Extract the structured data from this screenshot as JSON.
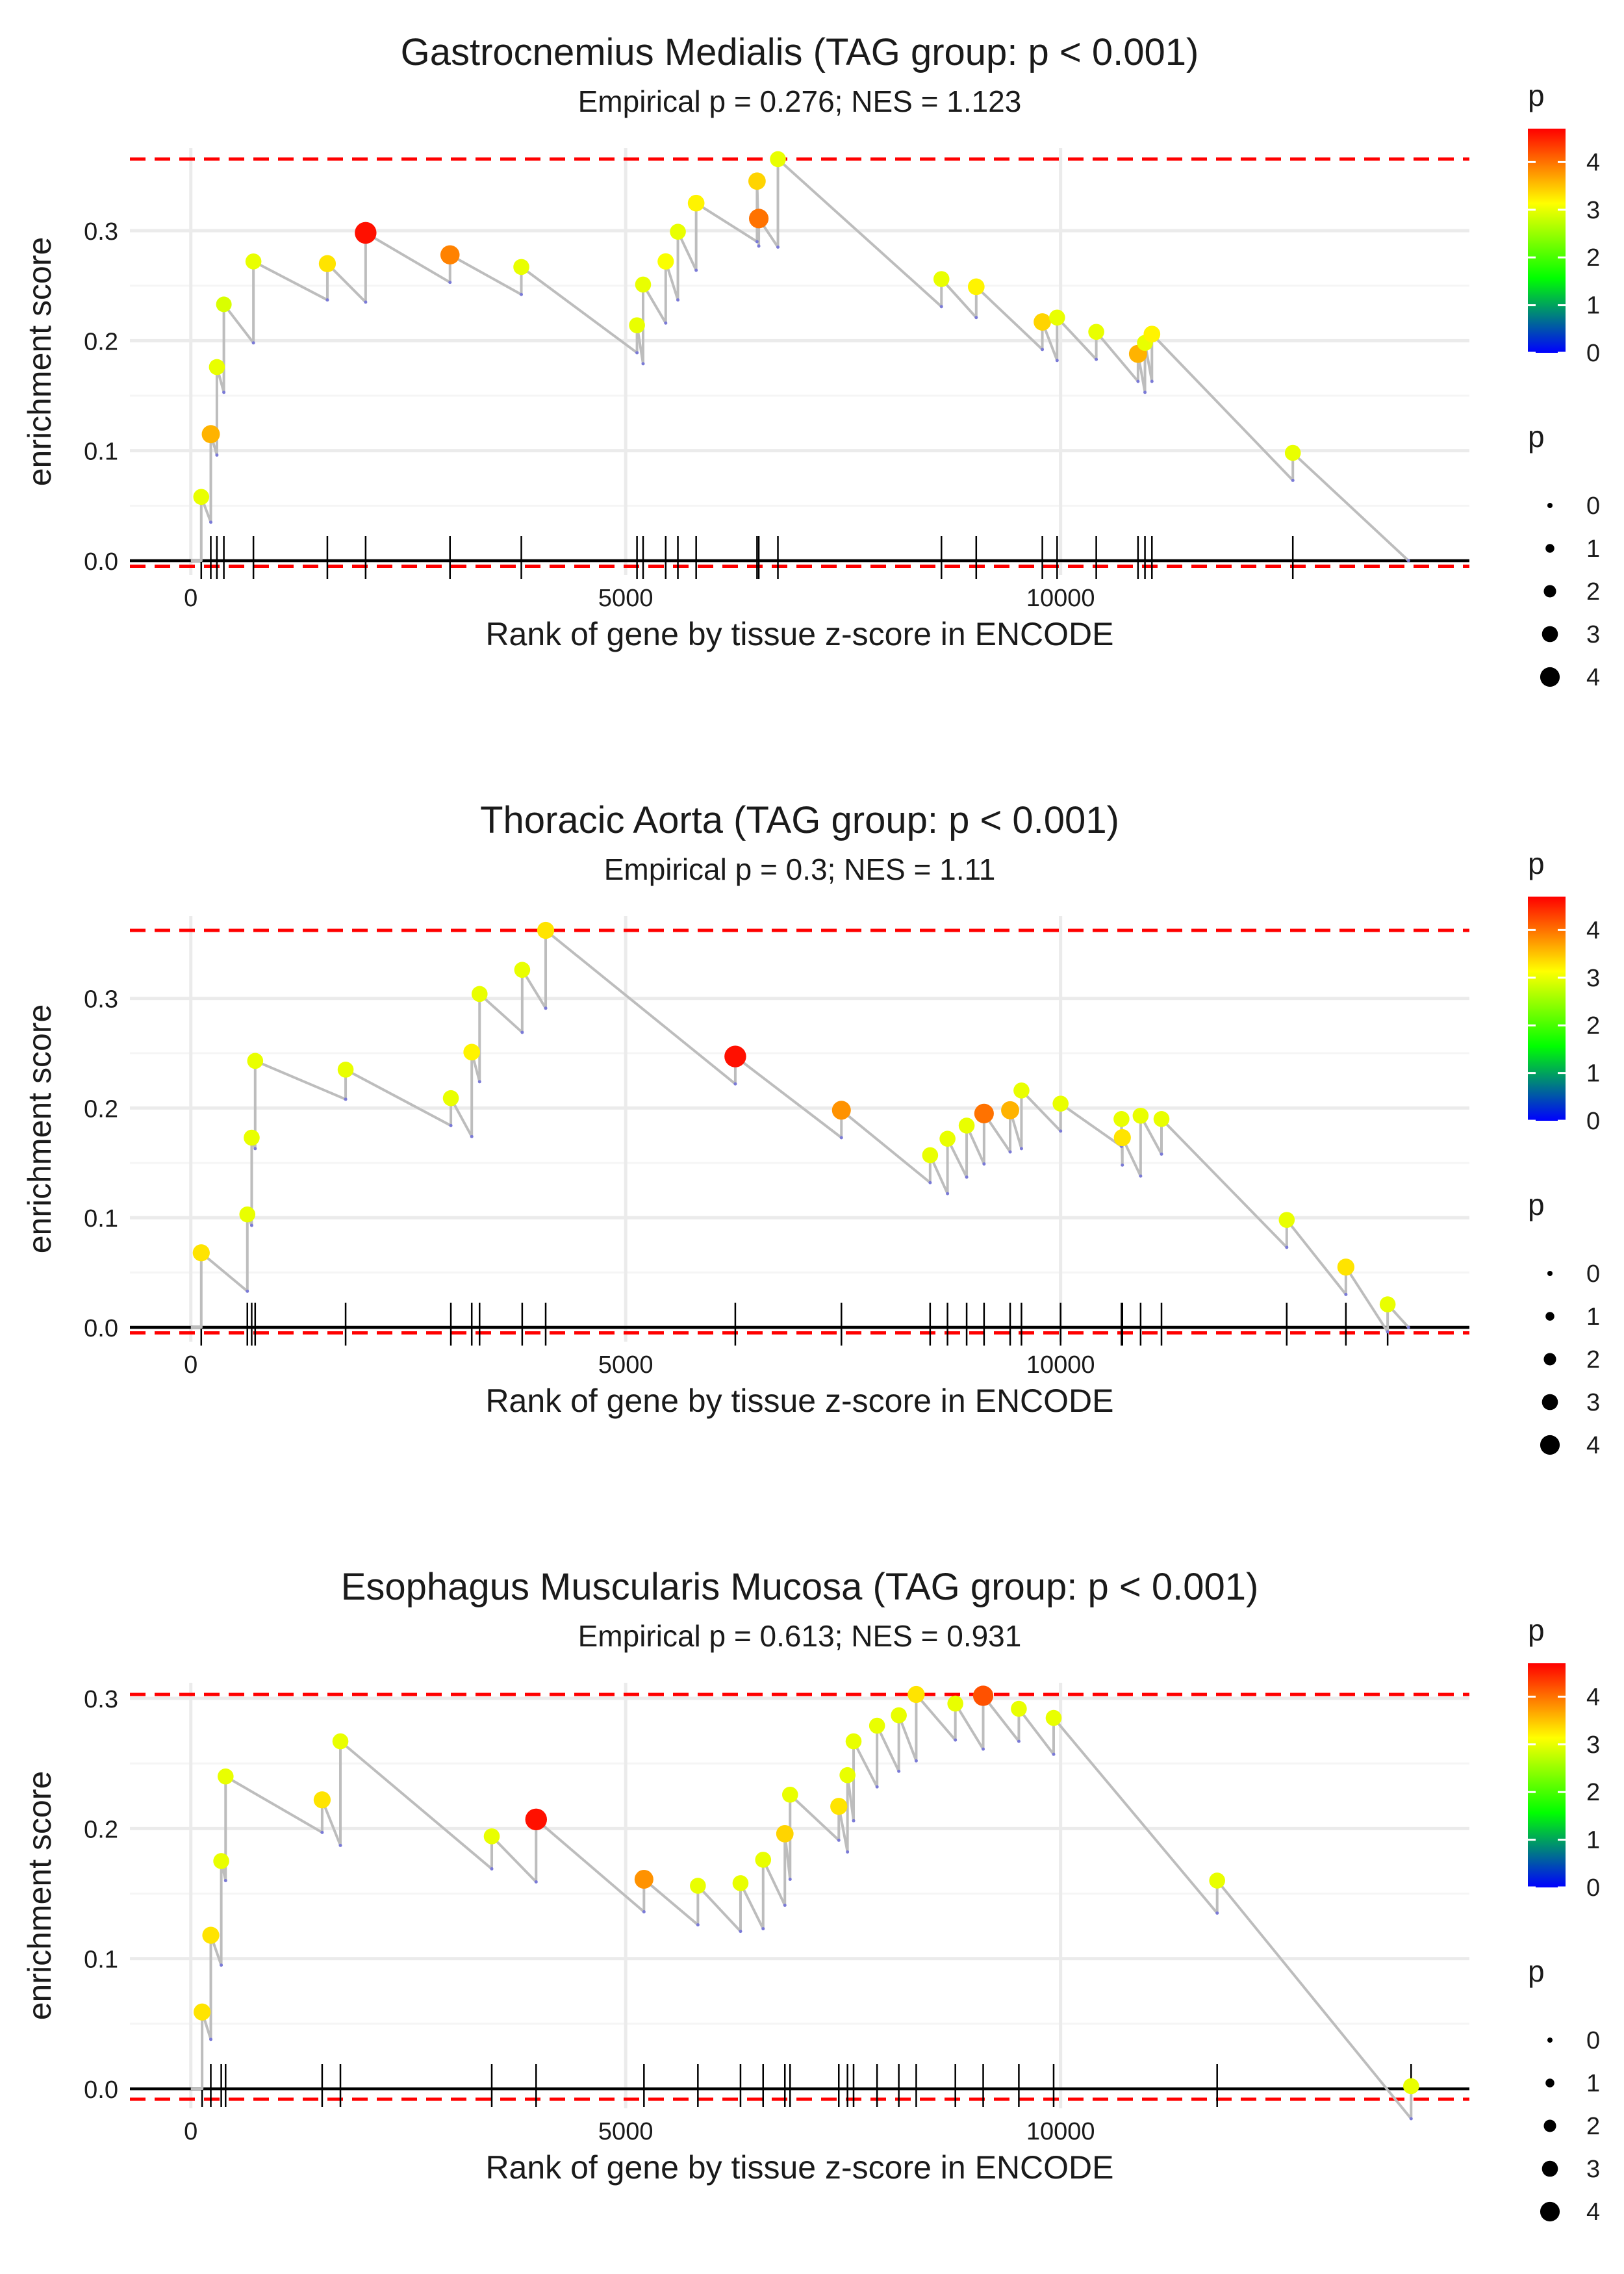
{
  "chart_data": [
    {
      "type": "line",
      "title": "Gastrocnemius Medialis (TAG group: p < 0.001)",
      "subtitle": "Empirical p = 0.276; NES = 1.123",
      "xlabel": "Rank of gene by tissue z-score in ENCODE",
      "ylabel": "enrichment score",
      "xlim": [
        -700,
        14700
      ],
      "ylim": [
        -0.013,
        0.375
      ],
      "xticks": [
        {
          "v": 0,
          "label": "0"
        },
        {
          "v": 5000,
          "label": "5000"
        },
        {
          "v": 10000,
          "label": "10000"
        }
      ],
      "yticks": [
        {
          "v": 0.0,
          "label": "0.0"
        },
        {
          "v": 0.1,
          "label": "0.1"
        },
        {
          "v": 0.2,
          "label": "0.2"
        },
        {
          "v": 0.3,
          "label": "0.3"
        }
      ],
      "max_es": 0.365,
      "min_es": -0.005,
      "end_rank": 14000,
      "hits": [
        {
          "rank": 120,
          "es": 0.058,
          "p": 3.0
        },
        {
          "rank": 230,
          "es": 0.115,
          "p": 3.6
        },
        {
          "rank": 300,
          "es": 0.176,
          "p": 3.0
        },
        {
          "rank": 380,
          "es": 0.233,
          "p": 2.9
        },
        {
          "rank": 720,
          "es": 0.272,
          "p": 3.0
        },
        {
          "rank": 1570,
          "es": 0.27,
          "p": 3.3
        },
        {
          "rank": 2010,
          "es": 0.298,
          "p": 4.6
        },
        {
          "rank": 2980,
          "es": 0.278,
          "p": 3.9
        },
        {
          "rank": 3800,
          "es": 0.267,
          "p": 3.0
        },
        {
          "rank": 5130,
          "es": 0.214,
          "p": 3.0
        },
        {
          "rank": 5200,
          "es": 0.251,
          "p": 3.0
        },
        {
          "rank": 5460,
          "es": 0.272,
          "p": 3.1
        },
        {
          "rank": 5600,
          "es": 0.299,
          "p": 3.0
        },
        {
          "rank": 5810,
          "es": 0.325,
          "p": 3.2
        },
        {
          "rank": 6510,
          "es": 0.345,
          "p": 3.4
        },
        {
          "rank": 6530,
          "es": 0.311,
          "p": 4.0
        },
        {
          "rank": 6750,
          "es": 0.365,
          "p": 3.0
        },
        {
          "rank": 8630,
          "es": 0.256,
          "p": 3.0
        },
        {
          "rank": 9030,
          "es": 0.249,
          "p": 3.2
        },
        {
          "rank": 9790,
          "es": 0.217,
          "p": 3.4
        },
        {
          "rank": 9960,
          "es": 0.221,
          "p": 3.0
        },
        {
          "rank": 10410,
          "es": 0.208,
          "p": 3.0
        },
        {
          "rank": 10890,
          "es": 0.188,
          "p": 3.6
        },
        {
          "rank": 10970,
          "es": 0.198,
          "p": 3.0
        },
        {
          "rank": 11050,
          "es": 0.206,
          "p": 3.2
        },
        {
          "rank": 12670,
          "es": 0.098,
          "p": 3.0
        }
      ]
    },
    {
      "type": "line",
      "title": "Thoracic Aorta (TAG group: p < 0.001)",
      "subtitle": "Empirical p = 0.3; NES = 1.11",
      "xlabel": "Rank of gene by tissue z-score in ENCODE",
      "ylabel": "enrichment score",
      "xlim": [
        -700,
        14700
      ],
      "ylim": [
        -0.013,
        0.375
      ],
      "xticks": [
        {
          "v": 0,
          "label": "0"
        },
        {
          "v": 5000,
          "label": "5000"
        },
        {
          "v": 10000,
          "label": "10000"
        }
      ],
      "yticks": [
        {
          "v": 0.0,
          "label": "0.0"
        },
        {
          "v": 0.1,
          "label": "0.1"
        },
        {
          "v": 0.2,
          "label": "0.2"
        },
        {
          "v": 0.3,
          "label": "0.3"
        }
      ],
      "max_es": 0.362,
      "min_es": -0.005,
      "end_rank": 14000,
      "hits": [
        {
          "rank": 120,
          "es": 0.068,
          "p": 3.3
        },
        {
          "rank": 650,
          "es": 0.103,
          "p": 3.0
        },
        {
          "rank": 700,
          "es": 0.173,
          "p": 3.0
        },
        {
          "rank": 740,
          "es": 0.243,
          "p": 3.0
        },
        {
          "rank": 1780,
          "es": 0.235,
          "p": 3.0
        },
        {
          "rank": 2990,
          "es": 0.209,
          "p": 3.0
        },
        {
          "rank": 3230,
          "es": 0.251,
          "p": 3.2
        },
        {
          "rank": 3320,
          "es": 0.304,
          "p": 3.0
        },
        {
          "rank": 3810,
          "es": 0.326,
          "p": 3.0
        },
        {
          "rank": 4080,
          "es": 0.362,
          "p": 3.3
        },
        {
          "rank": 6260,
          "es": 0.247,
          "p": 4.6
        },
        {
          "rank": 7480,
          "es": 0.198,
          "p": 3.8
        },
        {
          "rank": 8500,
          "es": 0.157,
          "p": 3.0
        },
        {
          "rank": 8700,
          "es": 0.172,
          "p": 3.0
        },
        {
          "rank": 8920,
          "es": 0.184,
          "p": 3.0
        },
        {
          "rank": 9120,
          "es": 0.195,
          "p": 4.0
        },
        {
          "rank": 9420,
          "es": 0.198,
          "p": 3.6
        },
        {
          "rank": 9550,
          "es": 0.216,
          "p": 3.0
        },
        {
          "rank": 10000,
          "es": 0.204,
          "p": 3.0
        },
        {
          "rank": 10700,
          "es": 0.19,
          "p": 3.0
        },
        {
          "rank": 10710,
          "es": 0.173,
          "p": 3.3
        },
        {
          "rank": 10920,
          "es": 0.193,
          "p": 3.0
        },
        {
          "rank": 11160,
          "es": 0.19,
          "p": 3.0
        },
        {
          "rank": 12600,
          "es": 0.098,
          "p": 3.0
        },
        {
          "rank": 13280,
          "es": 0.055,
          "p": 3.3
        },
        {
          "rank": 13760,
          "es": 0.021,
          "p": 3.0
        }
      ]
    },
    {
      "type": "line",
      "title": "Esophagus Muscularis Mucosa (TAG group: p < 0.001)",
      "subtitle": "Empirical p = 0.613; NES = 0.931",
      "xlabel": "Rank of gene by tissue z-score in ENCODE",
      "ylabel": "enrichment score",
      "xlim": [
        -700,
        14700
      ],
      "ylim": [
        -0.015,
        0.312
      ],
      "xticks": [
        {
          "v": 0,
          "label": "0"
        },
        {
          "v": 5000,
          "label": "5000"
        },
        {
          "v": 10000,
          "label": "10000"
        }
      ],
      "yticks": [
        {
          "v": 0.0,
          "label": "0.0"
        },
        {
          "v": 0.1,
          "label": "0.1"
        },
        {
          "v": 0.2,
          "label": "0.2"
        },
        {
          "v": 0.3,
          "label": "0.3"
        }
      ],
      "max_es": 0.303,
      "min_es": -0.008,
      "end_rank": 14000,
      "hits": [
        {
          "rank": 130,
          "es": 0.059,
          "p": 3.3
        },
        {
          "rank": 230,
          "es": 0.118,
          "p": 3.3
        },
        {
          "rank": 350,
          "es": 0.175,
          "p": 3.0
        },
        {
          "rank": 400,
          "es": 0.24,
          "p": 3.0
        },
        {
          "rank": 1510,
          "es": 0.222,
          "p": 3.3
        },
        {
          "rank": 1720,
          "es": 0.267,
          "p": 3.0
        },
        {
          "rank": 3460,
          "es": 0.194,
          "p": 3.0
        },
        {
          "rank": 3970,
          "es": 0.207,
          "p": 4.6
        },
        {
          "rank": 5210,
          "es": 0.161,
          "p": 3.8
        },
        {
          "rank": 5830,
          "es": 0.156,
          "p": 3.0
        },
        {
          "rank": 6320,
          "es": 0.158,
          "p": 3.0
        },
        {
          "rank": 6580,
          "es": 0.176,
          "p": 3.0
        },
        {
          "rank": 6830,
          "es": 0.196,
          "p": 3.4
        },
        {
          "rank": 6890,
          "es": 0.226,
          "p": 3.0
        },
        {
          "rank": 7450,
          "es": 0.217,
          "p": 3.3
        },
        {
          "rank": 7550,
          "es": 0.241,
          "p": 3.0
        },
        {
          "rank": 7620,
          "es": 0.267,
          "p": 3.0
        },
        {
          "rank": 7890,
          "es": 0.279,
          "p": 3.0
        },
        {
          "rank": 8140,
          "es": 0.287,
          "p": 3.0
        },
        {
          "rank": 8340,
          "es": 0.303,
          "p": 3.3
        },
        {
          "rank": 8790,
          "es": 0.296,
          "p": 3.0
        },
        {
          "rank": 9110,
          "es": 0.302,
          "p": 4.2
        },
        {
          "rank": 9520,
          "es": 0.292,
          "p": 3.0
        },
        {
          "rank": 9920,
          "es": 0.285,
          "p": 3.0
        },
        {
          "rank": 11800,
          "es": 0.16,
          "p": 3.0
        },
        {
          "rank": 14030,
          "es": 0.002,
          "p": 3.0
        }
      ]
    }
  ],
  "legend": {
    "color_title": "p",
    "color_ticks": [
      "0",
      "1",
      "2",
      "3",
      "4"
    ],
    "color_stops": [
      "#0000FF",
      "#00FF00",
      "#FFFF00",
      "#FF0000"
    ],
    "color_range": [
      0,
      4.7
    ],
    "size_title": "p",
    "size_labels": [
      "0",
      "1",
      "2",
      "3",
      "4"
    ],
    "size_values": [
      0,
      1,
      2,
      3,
      4
    ]
  },
  "colors": {
    "line": "#bdbdbd",
    "bound": "#ff0000",
    "grid": "#ebebeb",
    "axis": "#000000"
  }
}
